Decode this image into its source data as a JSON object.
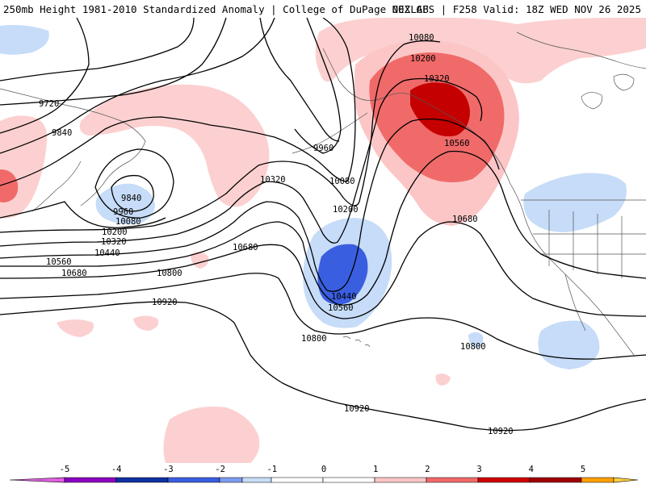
{
  "header": {
    "title_left": "250mb Height 1981-2010 Standardized Anomaly | College of DuPage NEXLAB",
    "title_right": "00Z GFS | F258 Valid: 18Z WED NOV 26 2025"
  },
  "contour_labels": [
    {
      "text": "9720"
    },
    {
      "text": "9840"
    },
    {
      "text": "9960"
    },
    {
      "text": "9840"
    },
    {
      "text": "9960"
    },
    {
      "text": "10080"
    },
    {
      "text": "10200"
    },
    {
      "text": "10320"
    },
    {
      "text": "10440"
    },
    {
      "text": "10560"
    },
    {
      "text": "10680"
    },
    {
      "text": "10800"
    },
    {
      "text": "10920"
    },
    {
      "text": "10320"
    },
    {
      "text": "10680"
    },
    {
      "text": "10080"
    },
    {
      "text": "10200"
    },
    {
      "text": "10080"
    },
    {
      "text": "10200"
    },
    {
      "text": "10320"
    },
    {
      "text": "10560"
    },
    {
      "text": "10680"
    },
    {
      "text": "10440"
    },
    {
      "text": "10560"
    },
    {
      "text": "10800"
    },
    {
      "text": "10800"
    },
    {
      "text": "10920"
    },
    {
      "text": "10920"
    }
  ],
  "colorbar": {
    "ticks": [
      "-5",
      "-4",
      "-3",
      "-2",
      "-1",
      "0",
      "1",
      "2",
      "3",
      "4",
      "5"
    ],
    "colors": [
      "#e060e0",
      "#8b00c0",
      "#1030a0",
      "#3a5ee0",
      "#7d9cf0",
      "#c6dcf8",
      "#ffffff",
      "#ffffff",
      "#fcc6c6",
      "#f06a6a",
      "#d00000",
      "#a00000",
      "#ffa000",
      "#ffd040"
    ]
  }
}
